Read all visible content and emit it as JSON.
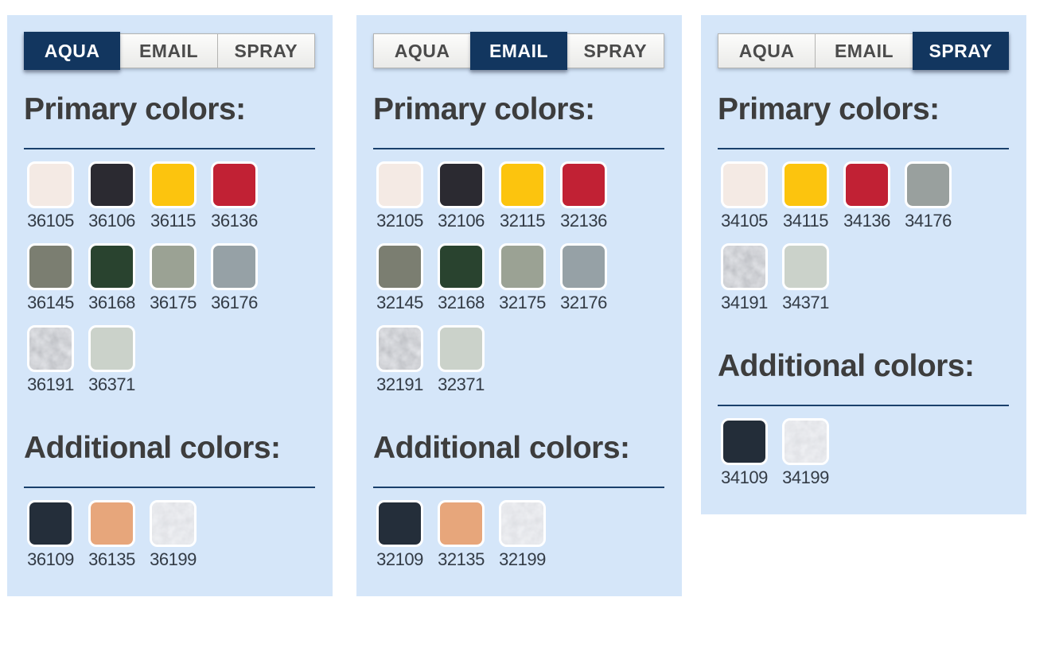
{
  "theme": {
    "panel_bg": "#d5e6f9",
    "accent_navy": "#12365f",
    "divider_navy": "#1a406c",
    "heading_color": "#3d3d3d",
    "code_color": "#333b45",
    "tab_inactive_text": "#4b4b4b"
  },
  "tabs": [
    "AQUA",
    "EMAIL",
    "SPRAY"
  ],
  "panels": [
    {
      "active_tab": "AQUA",
      "sections": [
        {
          "title": "Primary colors:",
          "swatches": [
            {
              "code": "36105",
              "color": "#f4eae4"
            },
            {
              "code": "36106",
              "color": "#2b2a31"
            },
            {
              "code": "36115",
              "color": "#fcc40e"
            },
            {
              "code": "36136",
              "color": "#c12134"
            },
            {
              "code": "36145",
              "color": "#7b7e71"
            },
            {
              "code": "36168",
              "color": "#29432f"
            },
            {
              "code": "36175",
              "color": "#9ba294"
            },
            {
              "code": "36176",
              "color": "#96a1a6"
            },
            {
              "code": "36191",
              "texture": "metal-dark"
            },
            {
              "code": "36371",
              "color": "#cbd2ca"
            }
          ]
        },
        {
          "title": "Additional colors:",
          "swatches": [
            {
              "code": "36109",
              "color": "#242e3a"
            },
            {
              "code": "36135",
              "color": "#e7a67b"
            },
            {
              "code": "36199",
              "texture": "metal-light"
            }
          ]
        }
      ]
    },
    {
      "active_tab": "EMAIL",
      "sections": [
        {
          "title": "Primary colors:",
          "swatches": [
            {
              "code": "32105",
              "color": "#f4eae4"
            },
            {
              "code": "32106",
              "color": "#2b2a31"
            },
            {
              "code": "32115",
              "color": "#fcc40e"
            },
            {
              "code": "32136",
              "color": "#c12134"
            },
            {
              "code": "32145",
              "color": "#7b7e71"
            },
            {
              "code": "32168",
              "color": "#29432f"
            },
            {
              "code": "32175",
              "color": "#9ba294"
            },
            {
              "code": "32176",
              "color": "#96a1a6"
            },
            {
              "code": "32191",
              "texture": "metal-dark"
            },
            {
              "code": "32371",
              "color": "#cbd2ca"
            }
          ]
        },
        {
          "title": "Additional colors:",
          "swatches": [
            {
              "code": "32109",
              "color": "#242e3a"
            },
            {
              "code": "32135",
              "color": "#e7a67b"
            },
            {
              "code": "32199",
              "texture": "metal-light"
            }
          ]
        }
      ]
    },
    {
      "active_tab": "SPRAY",
      "sections": [
        {
          "title": "Primary colors:",
          "swatches": [
            {
              "code": "34105",
              "color": "#f4eae4"
            },
            {
              "code": "34115",
              "color": "#fcc40e"
            },
            {
              "code": "34136",
              "color": "#c12134"
            },
            {
              "code": "34176",
              "color": "#99a09e"
            },
            {
              "code": "34191",
              "texture": "metal-dark"
            },
            {
              "code": "34371",
              "color": "#cbd2ca"
            }
          ]
        },
        {
          "title": "Additional colors:",
          "swatches": [
            {
              "code": "34109",
              "color": "#232d39"
            },
            {
              "code": "34199",
              "texture": "metal-light"
            }
          ]
        }
      ]
    }
  ],
  "textures": {
    "metal-dark": {
      "slope": 0.5,
      "intercept": 0.4,
      "base_frequency": 0.085,
      "seed": 11
    },
    "metal-light": {
      "slope": 0.26,
      "intercept": 0.68,
      "base_frequency": 0.09,
      "seed": 4
    }
  }
}
